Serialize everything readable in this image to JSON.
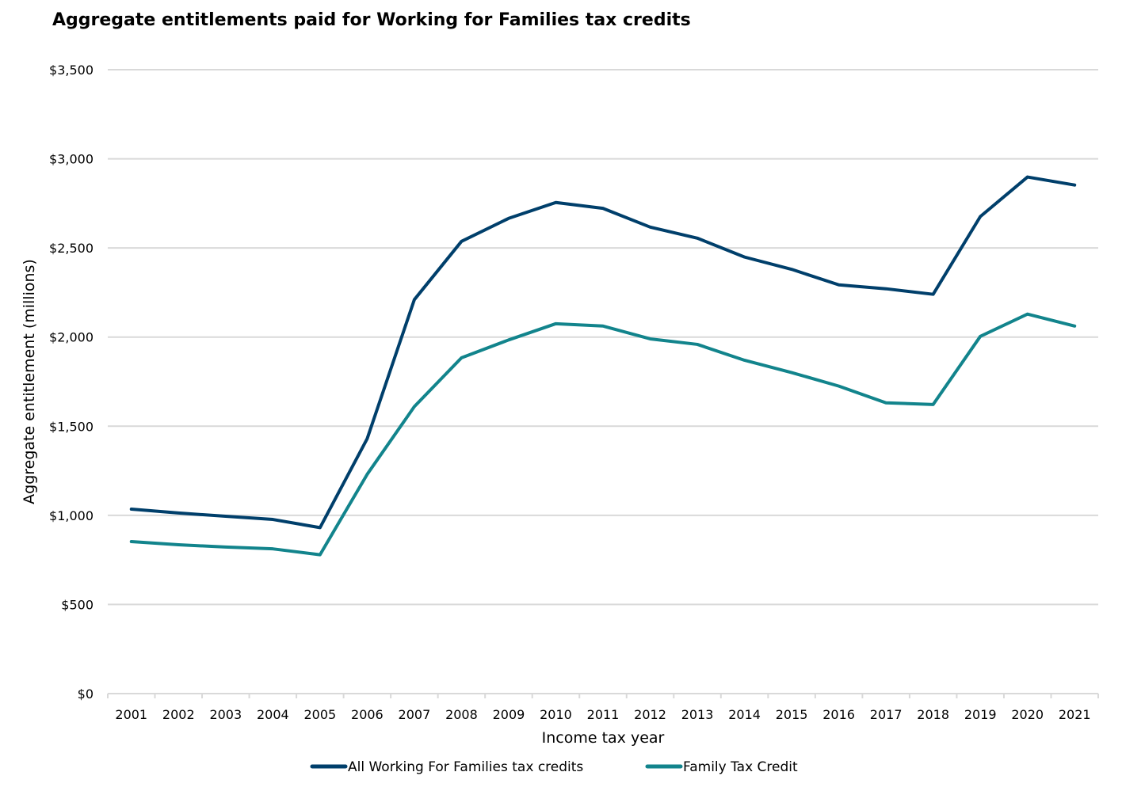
{
  "chart_data": {
    "type": "line",
    "title": "Aggregate entitlements paid for Working for Families tax credits",
    "xlabel": "Income tax year",
    "ylabel": "Aggregate entitlement (millions)",
    "ylim": [
      0,
      3500
    ],
    "yticks": [
      0,
      500,
      1000,
      1500,
      2000,
      2500,
      3000,
      3500
    ],
    "ytick_labels": [
      "$0",
      "$500",
      "$1,000",
      "$1,500",
      "$2,000",
      "$2,500",
      "$3,000",
      "$3,500"
    ],
    "grid": true,
    "legend_position": "bottom",
    "categories": [
      "2001",
      "2002",
      "2003",
      "2004",
      "2005",
      "2006",
      "2007",
      "2008",
      "2009",
      "2010",
      "2011",
      "2012",
      "2013",
      "2014",
      "2015",
      "2016",
      "2017",
      "2018",
      "2019",
      "2020",
      "2021"
    ],
    "series": [
      {
        "name": "All Working For Families tax credits",
        "color": "#003F6B",
        "values": [
          1035,
          1013,
          995,
          977,
          931,
          1430,
          2210,
          2537,
          2666,
          2755,
          2722,
          2617,
          2555,
          2449,
          2380,
          2293,
          2271,
          2240,
          2676,
          2898,
          2853
        ]
      },
      {
        "name": "Family Tax Credit",
        "color": "#12848C",
        "values": [
          853,
          835,
          822,
          812,
          779,
          1230,
          1610,
          1884,
          1984,
          2075,
          2062,
          1990,
          1959,
          1870,
          1801,
          1725,
          1631,
          1622,
          2004,
          2129,
          2062
        ]
      }
    ]
  }
}
